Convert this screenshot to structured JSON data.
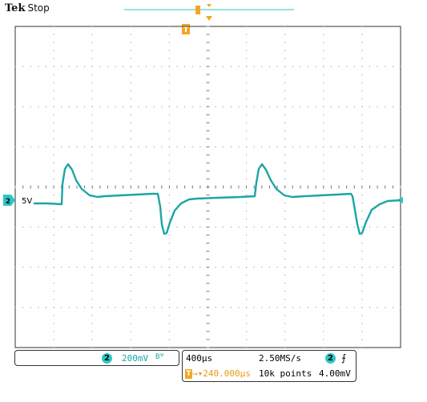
{
  "header": {
    "brand": "Tek",
    "status": "Stop"
  },
  "trigger_marker": {
    "label": "T"
  },
  "channel": {
    "number": "2",
    "ground_label": "5V",
    "volts_per_div": "200mV",
    "bw_symbol": "Bᵂ",
    "color": "#1ba6a6"
  },
  "timebase": {
    "time_per_div": "400µs",
    "sample_rate": "2.50MS/s",
    "trigger_offset": "240.000µs",
    "record_length": "10k points",
    "trigger_channel": "2",
    "trigger_slope_symbol": "⨍",
    "trigger_level": "4.00mV"
  },
  "colors": {
    "trace": "#1ba6a6",
    "trigger": "#f5a623",
    "grid": "#7f7f7f"
  }
}
